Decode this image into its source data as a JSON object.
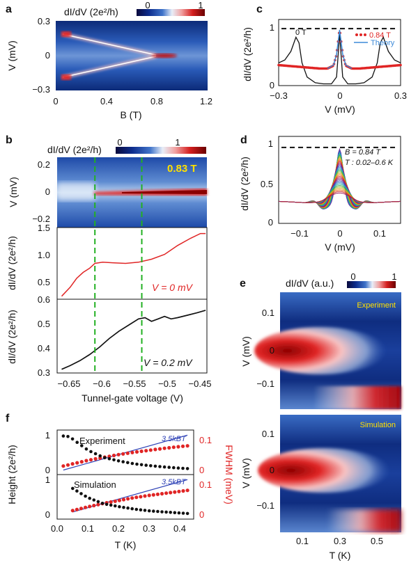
{
  "colors": {
    "colormap": [
      "#0a0a3c",
      "#0d2c8c",
      "#3f73c9",
      "#b9d1ee",
      "#ffffff",
      "#f0a0a0",
      "#e02525",
      "#800000"
    ],
    "red": "#e02525",
    "blue_line": "#2b3fb5",
    "green_dash": "#22b022",
    "yellow_text": "#ffe000",
    "black": "#111111"
  },
  "panel_a": {
    "letter": "a",
    "colorbar_label": "dI/dV (2e²/h)",
    "colorbar_ticks": [
      "0",
      "1"
    ],
    "ylabel": "V (mV)",
    "xlabel": "B (T)",
    "x_ticks": [
      "0",
      "0.4",
      "0.8",
      "1.2"
    ],
    "y_ticks": [
      "0.3",
      "0",
      "−0.3"
    ],
    "xlim": [
      0,
      1.2
    ],
    "ylim": [
      -0.3,
      0.3
    ],
    "features": {
      "gap_edge_mV_at_0T": 0.2,
      "gap_closing_B_T": 0.8,
      "zero_bias_peak_B_range_T": [
        0.8,
        0.95
      ]
    }
  },
  "panel_b": {
    "letter": "b",
    "colorbar_label": "dI/dV (2e²/h)",
    "colorbar_ticks": [
      "0",
      "1"
    ],
    "map_label": "0.83 T",
    "map_ylabel": "V (mV)",
    "map_y_ticks": [
      "0.2",
      "0",
      "−0.2"
    ],
    "mid_ylabel": "dI/dV (2e²/h)",
    "mid_y_ticks": [
      "1.5",
      "1.0",
      "0.5"
    ],
    "mid_annotation": "V = 0 mV",
    "bot_ylabel": "dI/dV (2e²/h)",
    "bot_y_ticks": [
      "0.6",
      "0.5",
      "0.4",
      "0.3"
    ],
    "bot_annotation": "V = 0.2 mV",
    "xlabel": "Tunnel-gate voltage (V)",
    "x_ticks": [
      "−0.65",
      "−0.6",
      "−0.55",
      "−0.5",
      "−0.45"
    ],
    "xlim": [
      -0.675,
      -0.445
    ],
    "dashed_lines_V": [
      -0.617,
      -0.545
    ]
  },
  "panel_c": {
    "letter": "c",
    "ylabel": "dI/dV (2e²/h)",
    "xlabel": "V (mV)",
    "x_ticks": [
      "−0.3",
      "0",
      "0.3"
    ],
    "y_ticks": [
      "1",
      "0"
    ],
    "xlim": [
      -0.3,
      0.3
    ],
    "ylim": [
      0,
      1.1
    ],
    "legend_data": "0.84 T",
    "legend_theory": "Theory",
    "curve_label": "0 T"
  },
  "panel_d": {
    "letter": "d",
    "ylabel": "dI/dV (2e²/h)",
    "xlabel": "V (mV)",
    "x_ticks": [
      "−0.1",
      "0",
      "0.1"
    ],
    "y_ticks": [
      "1",
      "0.5",
      "0"
    ],
    "xlim": [
      -0.15,
      0.15
    ],
    "ylim": [
      0,
      1.1
    ],
    "annot_B": "B = 0.84 T",
    "annot_T": "T : 0.02–0.6 K"
  },
  "panel_e": {
    "letter": "e",
    "colorbar_label": "dI/dV (a.u.)",
    "colorbar_ticks": [
      "0",
      "1"
    ],
    "top_label": "Experiment",
    "bottom_label": "Simulation",
    "ylabel": "V (mV)",
    "y_ticks": [
      "0.1",
      "0",
      "−0.1"
    ],
    "x_ticks": [
      "0.1",
      "0.3",
      "0.5"
    ],
    "xlabel": "T (K)"
  },
  "panel_f": {
    "letter": "f",
    "ylabel_left": "Height (2e²/h)",
    "ylabel_right": "FWHM (meV)",
    "xlabel": "T (K)",
    "x_ticks": [
      "0.0",
      "0.1",
      "0.2",
      "0.3",
      "0.4"
    ],
    "left_ticks": [
      "1",
      "0"
    ],
    "right_ticks": [
      "0.1",
      "0"
    ],
    "top_label": "Experiment",
    "bottom_label": "Simulation",
    "kbt_label": "3.5kBT"
  },
  "chart_data": [
    {
      "type": "heatmap",
      "panel": "a",
      "xlabel": "B (T)",
      "ylabel": "V (mV)",
      "xlim": [
        0,
        1.2
      ],
      "ylim": [
        -0.3,
        0.3
      ],
      "ridges": [
        {
          "name": "upper gap edge",
          "x": [
            0.05,
            0.8
          ],
          "y": [
            0.2,
            0.0
          ]
        },
        {
          "name": "lower gap edge",
          "x": [
            0.05,
            0.8
          ],
          "y": [
            -0.2,
            0.0
          ]
        },
        {
          "name": "zero-bias peak",
          "x": [
            0.8,
            0.95
          ],
          "y": [
            0,
            0
          ]
        }
      ]
    },
    {
      "type": "line",
      "panel": "b-middle",
      "label": "V = 0 mV",
      "x": [
        -0.668,
        -0.655,
        -0.645,
        -0.635,
        -0.625,
        -0.617,
        -0.605,
        -0.59,
        -0.57,
        -0.55,
        -0.53,
        -0.51,
        -0.49,
        -0.47,
        -0.455,
        -0.447
      ],
      "y": [
        0.35,
        0.5,
        0.65,
        0.75,
        0.82,
        0.9,
        0.92,
        0.91,
        0.9,
        0.92,
        0.97,
        1.05,
        1.2,
        1.32,
        1.4,
        1.4
      ],
      "ylim": [
        0.3,
        1.5
      ]
    },
    {
      "type": "line",
      "panel": "b-bottom",
      "label": "V = 0.2 mV",
      "x": [
        -0.668,
        -0.655,
        -0.64,
        -0.625,
        -0.61,
        -0.595,
        -0.58,
        -0.565,
        -0.55,
        -0.54,
        -0.53,
        -0.52,
        -0.51,
        -0.5,
        -0.49,
        -0.475,
        -0.46,
        -0.447
      ],
      "y": [
        0.315,
        0.33,
        0.35,
        0.375,
        0.405,
        0.44,
        0.47,
        0.495,
        0.52,
        0.525,
        0.51,
        0.52,
        0.53,
        0.52,
        0.525,
        0.535,
        0.545,
        0.555
      ],
      "ylim": [
        0.3,
        0.6
      ]
    },
    {
      "type": "line",
      "panel": "c",
      "series": [
        {
          "name": "0 T",
          "x": [
            -0.3,
            -0.27,
            -0.24,
            -0.215,
            -0.2,
            -0.185,
            -0.16,
            -0.12,
            -0.08,
            -0.04,
            -0.015,
            0,
            0.015,
            0.04,
            0.08,
            0.12,
            0.16,
            0.185,
            0.2,
            0.215,
            0.24,
            0.27,
            0.3
          ],
          "y": [
            0.4,
            0.45,
            0.6,
            0.85,
            0.75,
            0.4,
            0.15,
            0.05,
            0.03,
            0.03,
            0.15,
            0.9,
            0.15,
            0.03,
            0.03,
            0.05,
            0.15,
            0.4,
            0.75,
            0.85,
            0.6,
            0.45,
            0.4
          ]
        },
        {
          "name": "0.84 T",
          "x": [
            -0.3,
            -0.2,
            -0.1,
            -0.06,
            -0.03,
            -0.015,
            0,
            0.015,
            0.03,
            0.06,
            0.1,
            0.2,
            0.3
          ],
          "y": [
            0.36,
            0.33,
            0.3,
            0.3,
            0.35,
            0.55,
            1.0,
            0.55,
            0.35,
            0.3,
            0.3,
            0.33,
            0.36
          ]
        },
        {
          "name": "Theory",
          "x": [
            -0.06,
            -0.03,
            -0.015,
            0,
            0.015,
            0.03,
            0.06
          ],
          "y": [
            0.3,
            0.36,
            0.55,
            0.98,
            0.55,
            0.36,
            0.3
          ]
        }
      ],
      "reference_line_y": 1.0
    },
    {
      "type": "line",
      "panel": "d",
      "series": [
        {
          "name": "T = 0.02 K",
          "peak_height": 0.98
        },
        {
          "name": "T = 0.6 K",
          "peak_height": 0.4
        }
      ],
      "reference_line_y": 1.0
    },
    {
      "type": "scatter",
      "panel": "f-experiment",
      "series": [
        {
          "name": "Height",
          "x": [
            0.02,
            0.04,
            0.06,
            0.1,
            0.15,
            0.2,
            0.25,
            0.3,
            0.35,
            0.4,
            0.42
          ],
          "y": [
            1.0,
            0.98,
            0.85,
            0.6,
            0.4,
            0.3,
            0.22,
            0.17,
            0.13,
            0.1,
            0.09
          ]
        },
        {
          "name": "FWHM",
          "x": [
            0.02,
            0.04,
            0.06,
            0.1,
            0.15,
            0.2,
            0.25,
            0.3,
            0.35,
            0.4,
            0.42
          ],
          "y": [
            0.02,
            0.025,
            0.03,
            0.04,
            0.05,
            0.06,
            0.068,
            0.075,
            0.082,
            0.088,
            0.09
          ]
        },
        {
          "name": "3.5kBT",
          "x": [
            0.02,
            0.42
          ],
          "y": [
            0.006,
            0.127
          ]
        }
      ]
    },
    {
      "type": "scatter",
      "panel": "f-simulation",
      "series": [
        {
          "name": "Height",
          "x": [
            0.05,
            0.08,
            0.1,
            0.15,
            0.2,
            0.25,
            0.3,
            0.35,
            0.4,
            0.42
          ],
          "y": [
            0.78,
            0.62,
            0.52,
            0.35,
            0.27,
            0.2,
            0.15,
            0.12,
            0.09,
            0.08
          ]
        },
        {
          "name": "FWHM",
          "x": [
            0.05,
            0.08,
            0.1,
            0.15,
            0.2,
            0.25,
            0.3,
            0.35,
            0.4,
            0.42
          ],
          "y": [
            0.02,
            0.028,
            0.033,
            0.045,
            0.055,
            0.065,
            0.073,
            0.08,
            0.087,
            0.09
          ]
        },
        {
          "name": "3.5kBT",
          "x": [
            0.05,
            0.42
          ],
          "y": [
            0.015,
            0.127
          ]
        }
      ]
    }
  ]
}
